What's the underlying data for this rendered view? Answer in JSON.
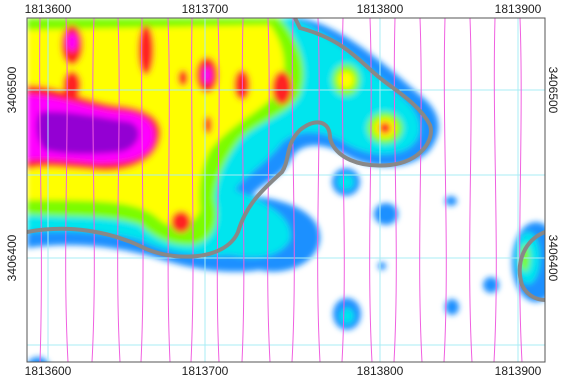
{
  "map": {
    "top_labels": [
      "1813600",
      "1813700",
      "1813800",
      "1813900"
    ],
    "bottom_labels": [
      "1813600",
      "1813700",
      "1813800",
      "1813900"
    ],
    "left_labels": [
      "3406500",
      "3406400"
    ],
    "right_labels": [
      "3406500",
      "3406400"
    ]
  }
}
